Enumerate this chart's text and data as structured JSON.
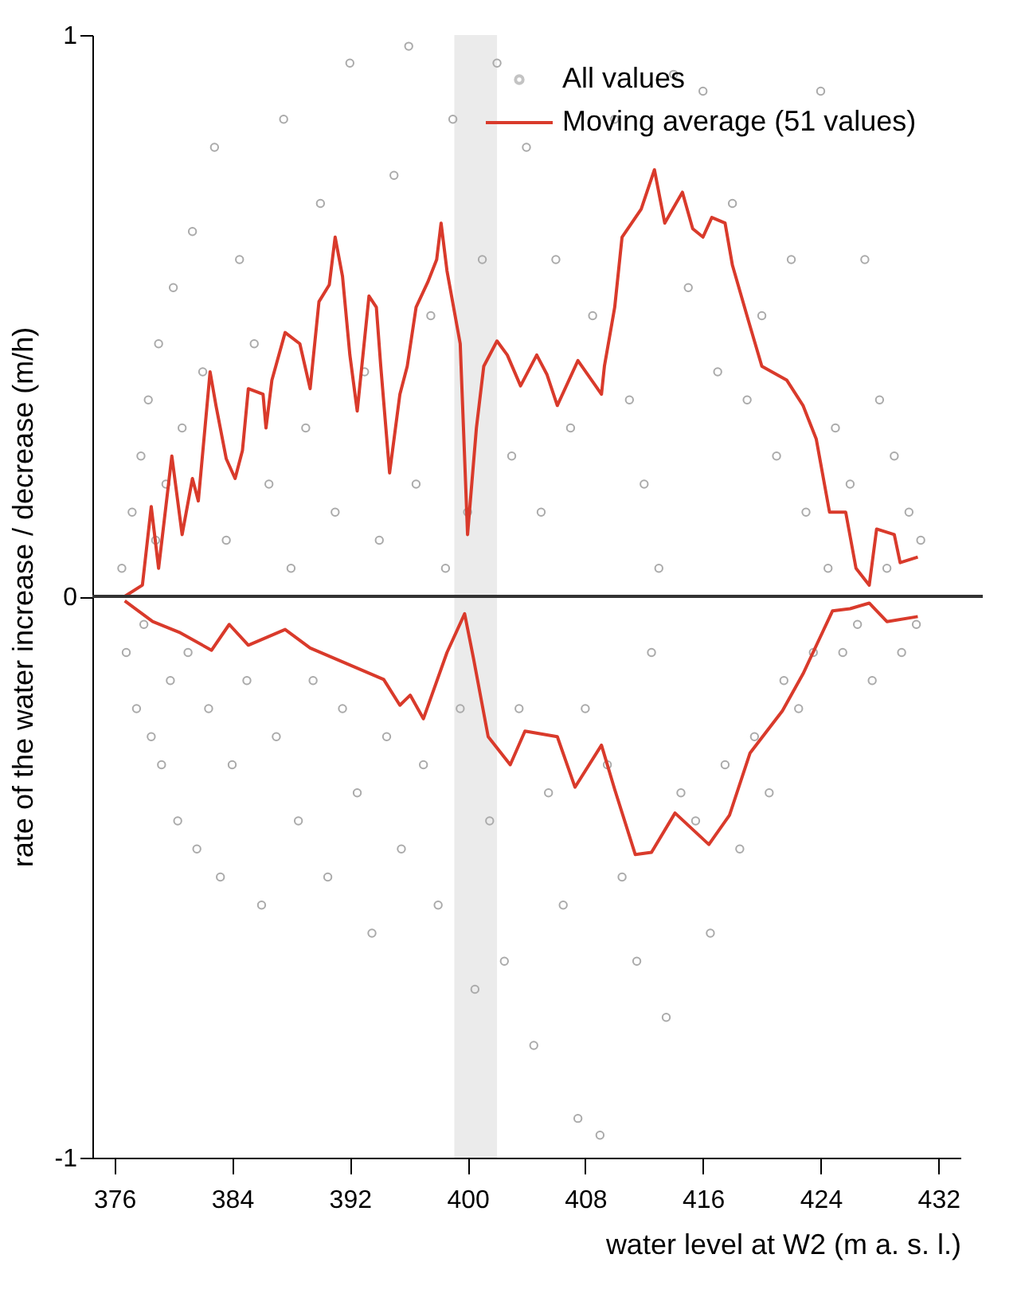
{
  "chart_data": {
    "type": "scatter",
    "xlabel": "water level at W2 (m a. s. l.)",
    "ylabel": "rate of the water increase / decrease (m/h)",
    "xlim": [
      374.5,
      433.5
    ],
    "ylim": [
      -1,
      1
    ],
    "xticks": [
      376,
      384,
      392,
      400,
      408,
      416,
      424,
      432
    ],
    "yticks": [
      -1,
      0,
      1
    ],
    "grid": false,
    "legend": "top right",
    "ref_lines": [
      {
        "axis": "y",
        "value": 0,
        "color": "#333333"
      }
    ],
    "bands": [
      {
        "axis": "x",
        "from": 399.1,
        "to": 402.0,
        "color": "#ebebeb"
      }
    ],
    "series": [
      {
        "name": "All values",
        "marker": "circle",
        "color": "#aaaaaa",
        "x": [
          376.5,
          376.8,
          377.2,
          377.5,
          377.8,
          378.0,
          378.3,
          378.5,
          378.8,
          379.0,
          379.2,
          379.5,
          379.8,
          380.0,
          380.3,
          380.6,
          381.0,
          381.3,
          381.6,
          382.0,
          382.4,
          382.8,
          383.2,
          383.6,
          384.0,
          384.5,
          385.0,
          385.5,
          386.0,
          386.5,
          387.0,
          387.5,
          388.0,
          388.5,
          389.0,
          389.5,
          390.0,
          390.5,
          391.0,
          391.5,
          392.0,
          392.5,
          393.0,
          393.5,
          394.0,
          394.5,
          395.0,
          395.5,
          396.0,
          396.5,
          397.0,
          397.5,
          398.0,
          398.5,
          399.0,
          399.5,
          400.0,
          400.5,
          401.0,
          401.5,
          402.0,
          402.5,
          403.0,
          403.5,
          404.0,
          404.5,
          405.0,
          405.5,
          406.0,
          406.5,
          407.0,
          407.5,
          408.0,
          408.5,
          409.0,
          409.5,
          410.0,
          410.5,
          411.0,
          411.5,
          412.0,
          412.5,
          413.0,
          413.5,
          414.0,
          414.5,
          415.0,
          415.5,
          416.0,
          416.5,
          417.0,
          417.5,
          418.0,
          418.5,
          419.0,
          419.5,
          420.0,
          420.5,
          421.0,
          421.5,
          422.0,
          422.5,
          423.0,
          423.5,
          424.0,
          424.5,
          425.0,
          425.5,
          426.0,
          426.5,
          427.0,
          427.5,
          428.0,
          428.5,
          429.0,
          429.5,
          430.0,
          430.5,
          430.8
        ],
        "values": [
          0.05,
          -0.1,
          0.15,
          -0.2,
          0.25,
          -0.05,
          0.35,
          -0.25,
          0.1,
          0.45,
          -0.3,
          0.2,
          -0.15,
          0.55,
          -0.4,
          0.3,
          -0.1,
          0.65,
          -0.45,
          0.4,
          -0.2,
          0.8,
          -0.5,
          0.1,
          -0.3,
          0.6,
          -0.15,
          0.45,
          -0.55,
          0.2,
          -0.25,
          0.85,
          0.05,
          -0.4,
          0.3,
          -0.15,
          0.7,
          -0.5,
          0.15,
          -0.2,
          0.95,
          -0.35,
          0.4,
          -0.6,
          0.1,
          -0.25,
          0.75,
          -0.45,
          0.98,
          0.2,
          -0.3,
          0.5,
          -0.55,
          0.05,
          0.85,
          -0.2,
          0.15,
          -0.7,
          0.6,
          -0.4,
          0.95,
          -0.65,
          0.25,
          -0.2,
          0.8,
          -0.8,
          0.15,
          -0.35,
          0.6,
          -0.55,
          0.3,
          -0.93,
          -0.2,
          0.5,
          -0.96,
          -0.3,
          0.85,
          -0.5,
          0.35,
          -0.65,
          0.2,
          -0.1,
          0.05,
          -0.75,
          0.93,
          -0.35,
          0.55,
          -0.4,
          0.9,
          -0.6,
          0.4,
          -0.3,
          0.7,
          -0.45,
          0.35,
          -0.25,
          0.5,
          -0.35,
          0.25,
          -0.15,
          0.6,
          -0.2,
          0.15,
          -0.1,
          0.9,
          0.05,
          0.3,
          -0.1,
          0.2,
          -0.05,
          0.6,
          -0.15,
          0.35,
          0.05,
          0.25,
          -0.1,
          0.15,
          -0.05,
          0.1
        ]
      },
      {
        "name": "Moving average (51 values)",
        "type": "line",
        "color": "#d93a2b",
        "x": [
          376.7,
          377.9,
          378.5,
          379.0,
          379.9,
          380.6,
          381.3,
          381.7,
          382.5,
          382.9,
          383.6,
          384.2,
          384.7,
          385.1,
          386.1,
          386.3,
          386.7,
          387.6,
          388.6,
          389.3,
          389.9,
          390.6,
          391.0,
          391.5,
          392.0,
          392.5,
          393.3,
          393.8,
          394.1,
          394.7,
          395.4,
          395.9,
          396.5,
          397.3,
          397.9,
          398.2,
          398.6,
          399.5,
          400.0,
          400.6,
          401.1,
          402.0,
          402.7,
          403.6,
          404.7,
          405.4,
          406.1,
          407.5,
          409.1,
          409.3,
          410.0,
          410.5,
          411.8,
          412.7,
          413.4,
          414.6,
          415.3,
          416.0,
          416.6,
          417.5,
          418.0,
          419.1,
          420.0,
          421.7,
          422.8,
          423.7,
          424.6,
          425.7,
          426.4,
          427.3,
          427.8,
          429.0,
          429.4,
          430.6
        ],
        "values": [
          0.0,
          0.02,
          0.16,
          0.05,
          0.25,
          0.11,
          0.21,
          0.17,
          0.4,
          0.34,
          0.245,
          0.21,
          0.26,
          0.37,
          0.36,
          0.3,
          0.385,
          0.47,
          0.45,
          0.37,
          0.525,
          0.555,
          0.64,
          0.57,
          0.43,
          0.33,
          0.535,
          0.515,
          0.41,
          0.22,
          0.36,
          0.41,
          0.515,
          0.56,
          0.6,
          0.665,
          0.58,
          0.45,
          0.11,
          0.3,
          0.41,
          0.455,
          0.43,
          0.375,
          0.43,
          0.395,
          0.34,
          0.42,
          0.36,
          0.41,
          0.515,
          0.64,
          0.69,
          0.76,
          0.665,
          0.72,
          0.655,
          0.64,
          0.675,
          0.665,
          0.59,
          0.49,
          0.41,
          0.385,
          0.34,
          0.28,
          0.15,
          0.15,
          0.05,
          0.02,
          0.12,
          0.11,
          0.06,
          0.07
        ]
      },
      {
        "type": "line",
        "color": "#d93a2b",
        "x": [
          376.7,
          378.6,
          380.4,
          382.6,
          383.8,
          385.1,
          387.6,
          389.3,
          391.8,
          394.3,
          395.4,
          396.1,
          397.0,
          398.6,
          399.8,
          400.4,
          401.4,
          402.9,
          403.9,
          406.1,
          407.3,
          409.1,
          410.0,
          411.4,
          412.5,
          414.1,
          416.4,
          417.8,
          419.2,
          421.4,
          422.8,
          424.8,
          426.0,
          427.3,
          428.5,
          430.6
        ],
        "values": [
          -0.008,
          -0.045,
          -0.064,
          -0.096,
          -0.05,
          -0.087,
          -0.059,
          -0.092,
          -0.12,
          -0.148,
          -0.194,
          -0.176,
          -0.218,
          -0.1,
          -0.031,
          -0.11,
          -0.25,
          -0.3,
          -0.24,
          -0.25,
          -0.34,
          -0.265,
          -0.344,
          -0.46,
          -0.456,
          -0.386,
          -0.442,
          -0.39,
          -0.279,
          -0.204,
          -0.138,
          -0.026,
          -0.022,
          -0.012,
          -0.045,
          -0.036
        ]
      }
    ]
  }
}
